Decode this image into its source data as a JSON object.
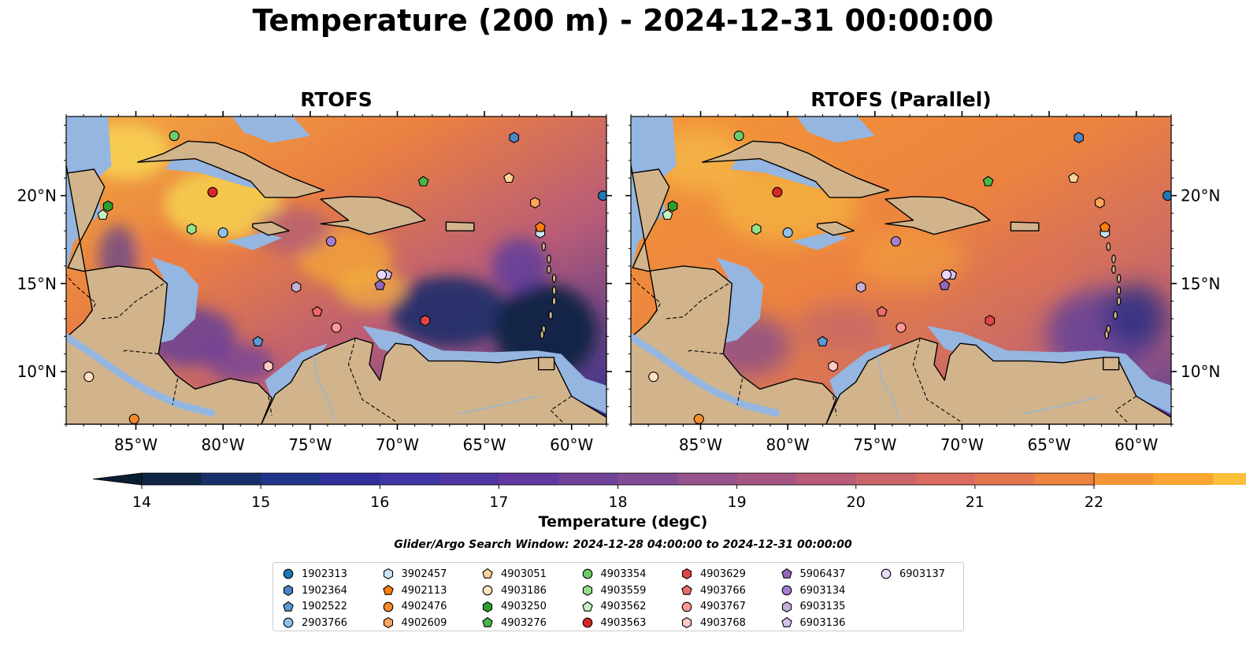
{
  "title": "Temperature (200 m) - 2024-12-31 00:00:00",
  "panels": [
    {
      "title": "RTOFS",
      "variant": "main"
    },
    {
      "title": "RTOFS (Parallel)",
      "variant": "parallel"
    }
  ],
  "map_extent": {
    "lon_min": -89,
    "lon_max": -58,
    "lat_min": 7,
    "lat_max": 24.5
  },
  "lon_ticks": [
    {
      "lon": -85,
      "label": "85°W"
    },
    {
      "lon": -80,
      "label": "80°W"
    },
    {
      "lon": -75,
      "label": "75°W"
    },
    {
      "lon": -70,
      "label": "70°W"
    },
    {
      "lon": -65,
      "label": "65°W"
    },
    {
      "lon": -60,
      "label": "60°W"
    }
  ],
  "lat_ticks": [
    {
      "lat": 10,
      "label": "10°N"
    },
    {
      "lat": 15,
      "label": "15°N"
    },
    {
      "lat": 20,
      "label": "20°N"
    }
  ],
  "colorbar": {
    "label": "Temperature (degC)",
    "min": 14,
    "max": 22,
    "step": 0.5,
    "ticks": [
      14,
      15,
      16,
      17,
      18,
      19,
      20,
      21,
      22
    ],
    "colors": [
      "#0e2545",
      "#17306a",
      "#22348a",
      "#302f9c",
      "#3f34a3",
      "#5036a2",
      "#61399f",
      "#71429a",
      "#824c94",
      "#96528c",
      "#a65683",
      "#b85c78",
      "#c96469",
      "#d96b5f",
      "#e4764f",
      "#ee8440",
      "#f39537",
      "#f8a532",
      "#fbbf3a",
      "#f6da53"
    ],
    "under_color": "#0a1e33",
    "over_color": "#e8f55a"
  },
  "map_colors": {
    "land": "#d2b48c",
    "shelf": "#94b6e0",
    "deep_ocean": "#04213a"
  },
  "search_window": "Glider/Argo Search Window: 2024-12-28 04:00:00 to 2024-12-31 00:00:00",
  "floats": [
    {
      "id": "1902313",
      "marker": "circle",
      "color": "#1f77b4",
      "lon": -58.2,
      "lat": 20.0
    },
    {
      "id": "1902364",
      "marker": "hexagon",
      "color": "#4a86c5",
      "lon": -63.3,
      "lat": 23.3
    },
    {
      "id": "1902522",
      "marker": "pentagon",
      "color": "#5b9ad6",
      "lon": -78.0,
      "lat": 11.7
    },
    {
      "id": "2903766",
      "marker": "circle",
      "color": "#8fc1ea",
      "lon": -80.0,
      "lat": 17.9
    },
    {
      "id": "3902457",
      "marker": "hexagon",
      "color": "#c9e6f8",
      "lon": -61.8,
      "lat": 17.9
    },
    {
      "id": "4902113",
      "marker": "pentagon",
      "color": "#ff7f0e",
      "lon": -61.8,
      "lat": 18.2
    },
    {
      "id": "4902476",
      "marker": "circle",
      "color": "#f58a2a",
      "lon": -85.1,
      "lat": 7.3
    },
    {
      "id": "4902609",
      "marker": "hexagon",
      "color": "#ffa65a",
      "lon": -62.1,
      "lat": 19.6
    },
    {
      "id": "4903051",
      "marker": "pentagon",
      "color": "#ffd09a",
      "lon": -63.6,
      "lat": 21.0
    },
    {
      "id": "4903186",
      "marker": "circle",
      "color": "#ffe2c2",
      "lon": -87.7,
      "lat": 9.7
    },
    {
      "id": "4903250",
      "marker": "hexagon",
      "color": "#2ca02c",
      "lon": -86.6,
      "lat": 19.4
    },
    {
      "id": "4903276",
      "marker": "pentagon",
      "color": "#49b649",
      "lon": -68.5,
      "lat": 20.8
    },
    {
      "id": "4903354",
      "marker": "circle",
      "color": "#6ccc6c",
      "lon": -82.8,
      "lat": 23.4
    },
    {
      "id": "4903559",
      "marker": "hexagon",
      "color": "#98df8a",
      "lon": -81.8,
      "lat": 18.1
    },
    {
      "id": "4903562",
      "marker": "pentagon",
      "color": "#c5f2c0",
      "lon": -86.9,
      "lat": 18.9
    },
    {
      "id": "4903563",
      "marker": "circle",
      "color": "#d62728",
      "lon": -80.6,
      "lat": 20.2
    },
    {
      "id": "4903629",
      "marker": "hexagon",
      "color": "#e14545",
      "lon": -68.4,
      "lat": 12.9
    },
    {
      "id": "4903766",
      "marker": "pentagon",
      "color": "#ee6a6a",
      "lon": -74.6,
      "lat": 13.4
    },
    {
      "id": "4903767",
      "marker": "circle",
      "color": "#ff9896",
      "lon": -73.5,
      "lat": 12.5
    },
    {
      "id": "4903768",
      "marker": "hexagon",
      "color": "#ffc8c4",
      "lon": -77.4,
      "lat": 10.3
    },
    {
      "id": "5906437",
      "marker": "pentagon",
      "color": "#9467bd",
      "lon": -71.0,
      "lat": 14.9
    },
    {
      "id": "6903134",
      "marker": "circle",
      "color": "#a57fd0",
      "lon": -73.8,
      "lat": 17.4
    },
    {
      "id": "6903135",
      "marker": "hexagon",
      "color": "#c5b0d5",
      "lon": -75.8,
      "lat": 14.8
    },
    {
      "id": "6903136",
      "marker": "pentagon",
      "color": "#d7c2ee",
      "lon": -70.6,
      "lat": 15.5
    },
    {
      "id": "6903137",
      "marker": "circle",
      "color": "#ead8ff",
      "lon": -70.9,
      "lat": 15.5
    }
  ]
}
